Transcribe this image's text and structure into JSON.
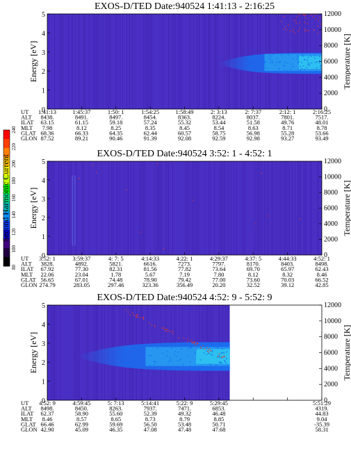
{
  "colors": {
    "background_low": "#3a1ca8",
    "background_mid": "#4a2fc4",
    "band_core": "#1a6ef0",
    "band_bright": "#2aa6f2",
    "band_peak": "#30d2f0",
    "noise": "#d43a3a"
  },
  "colorbar": {
    "label": "Second Harmonic Current",
    "ticks": [
      "240",
      "220",
      "200",
      "180",
      "160",
      "140",
      "120",
      "100",
      "80"
    ],
    "colors": [
      "#ff0000",
      "#ff4000",
      "#ff8000",
      "#ffc000",
      "#ffff00",
      "#c0ff00",
      "#00ff00",
      "#00e080",
      "#00c0c0",
      "#0090ff",
      "#0040ff",
      "#0000c8",
      "#400080",
      "#200040",
      "#000000"
    ]
  },
  "chart_data": [
    {
      "type": "heatmap",
      "title": "EXOS-D/TED   Date:940524  1:41:13 - 2:16:25",
      "ylabel": "Energy [eV]",
      "ylabel_right": "Temperature [K]",
      "ylim": [
        0,
        5
      ],
      "ylim_right": [
        0,
        12000
      ],
      "yticks": [
        "0",
        "1",
        "2",
        "3",
        "4",
        "5"
      ],
      "yticks_right": [
        "0",
        "2000",
        "4000",
        "6000",
        "8000",
        "10000",
        "12000"
      ],
      "band": {
        "start_fraction": 0.62,
        "center_ev": 2.4,
        "half_width_ev": 0.55,
        "peak_ev": [
          2.0,
          2.9
        ]
      },
      "table": {
        "row_labels": [
          "UT",
          "ALT",
          "ILAT",
          "MLT",
          "GLAT",
          "GLON"
        ],
        "columns": [
          [
            "1:41:13",
            "8438.",
            "63.15",
            "7.98",
            "68.36",
            "87.52"
          ],
          [
            "1:45:37",
            "8491.",
            "61.15",
            "8.12",
            "66.33",
            "89.21"
          ],
          [
            "1:50: 1",
            "8497.",
            "59.18",
            "8.25",
            "64.35",
            "90.46"
          ],
          [
            "1:54:25",
            "8454.",
            "57.24",
            "8.35",
            "62.44",
            "91.39"
          ],
          [
            "1:58:49",
            "8363.",
            "55.32",
            "8.45",
            "60.57",
            "92.08"
          ],
          [
            "2: 3:13",
            "8224.",
            "53.44",
            "8.54",
            "58.75",
            "92.59"
          ],
          [
            "2: 7:37",
            "8037.",
            "51.58",
            "8.63",
            "56.98",
            "92.98"
          ],
          [
            "2:12: 1",
            "7801.",
            "49.76",
            "8.71",
            "55.28",
            "93.27"
          ],
          [
            "2:16:25",
            "7517.",
            "48.01",
            "8.78",
            "53.66",
            "93.49"
          ]
        ]
      }
    },
    {
      "type": "heatmap",
      "title": "EXOS-D/TED   Date:940524  3:52: 1 - 4:52: 1",
      "ylabel": "Energy [eV]",
      "ylabel_right": "Temperature [K]",
      "ylim": [
        0,
        5
      ],
      "ylim_right": [
        0,
        12000
      ],
      "yticks": [
        "0",
        "1",
        "2",
        "3",
        "4",
        "5"
      ],
      "yticks_right": [
        "0",
        "2000",
        "4000",
        "6000",
        "8000",
        "10000",
        "12000"
      ],
      "band": null,
      "table": {
        "row_labels": [
          "UT",
          "ALT",
          "ILAT",
          "MLT",
          "GLAT",
          "GLON"
        ],
        "columns": [
          [
            "3:52: 1",
            "3828.",
            "67.92",
            "22.06",
            "56.65",
            "274.79"
          ],
          [
            "3:59:37",
            "4892.",
            "77.30",
            "23.04",
            "67.01",
            "283.05"
          ],
          [
            "4: 7: 5",
            "5821.",
            "82.31",
            "1.78",
            "74.48",
            "297.46"
          ],
          [
            "4:14:33",
            "6616.",
            "81.56",
            "5.67",
            "78.90",
            "323.36"
          ],
          [
            "4:22: 1",
            "7273.",
            "77.82",
            "7.19",
            "79.42",
            "356.49"
          ],
          [
            "4:29:37",
            "7797.",
            "73.64",
            "7.80",
            "77.00",
            "20.20"
          ],
          [
            "4:37: 5",
            "8170.",
            "69.70",
            "8.12",
            "73.60",
            "32.52"
          ],
          [
            "4:44:33",
            "8403.",
            "65.97",
            "8.32",
            "70.03",
            "39.12"
          ],
          [
            "4:52: 1",
            "8498.",
            "62.43",
            "8.46",
            "66.52",
            "42.85"
          ]
        ]
      }
    },
    {
      "type": "heatmap",
      "title": "EXOS-D/TED   Date:940524  4:52: 9 - 5:52: 9",
      "ylabel": "Energy [eV]",
      "ylabel_right": "Temperature [K]",
      "ylim": [
        0,
        5
      ],
      "ylim_right": [
        0,
        12000
      ],
      "yticks": [
        "0",
        "1",
        "2",
        "3",
        "4",
        "5"
      ],
      "yticks_right": [
        "0",
        "2000",
        "4000",
        "6000",
        "8000",
        "10000",
        "12000"
      ],
      "data_end_fraction": 0.665,
      "band": {
        "start_fraction": 0.16,
        "center_ev": 2.3,
        "half_width_ev": 0.75,
        "peak_ev": [
          1.8,
          2.8
        ]
      },
      "table": {
        "row_labels": [
          "UT",
          "ALT",
          "ILAT",
          "MLT",
          "GLAT",
          "GLON"
        ],
        "columns": [
          [
            "4:52: 9",
            "8498.",
            "62.37",
            "8.46",
            "66.46",
            "42.90"
          ],
          [
            "4:59:45",
            "8450.",
            "58.90",
            "8.57",
            "62.99",
            "45.09"
          ],
          [
            "5: 7:13",
            "8263.",
            "55.60",
            "8.65",
            "59.69",
            "46.35"
          ],
          [
            "5:14:41",
            "7937.",
            "52.39",
            "8.73",
            "56.50",
            "47.08"
          ],
          [
            "5:22: 9",
            "7471.",
            "49.32",
            "8.79",
            "53.48",
            "47.48"
          ],
          [
            "5:29:45",
            "6853.",
            "46.48",
            "8.85",
            "50.71",
            "47.68"
          ],
          [
            "",
            "",
            "",
            "",
            "",
            ""
          ],
          [
            "",
            "",
            "",
            "",
            "",
            ""
          ],
          [
            "5:51:29",
            "4319.",
            "44.83",
            "9.04",
            "-35.39",
            "58.31"
          ]
        ]
      }
    }
  ]
}
